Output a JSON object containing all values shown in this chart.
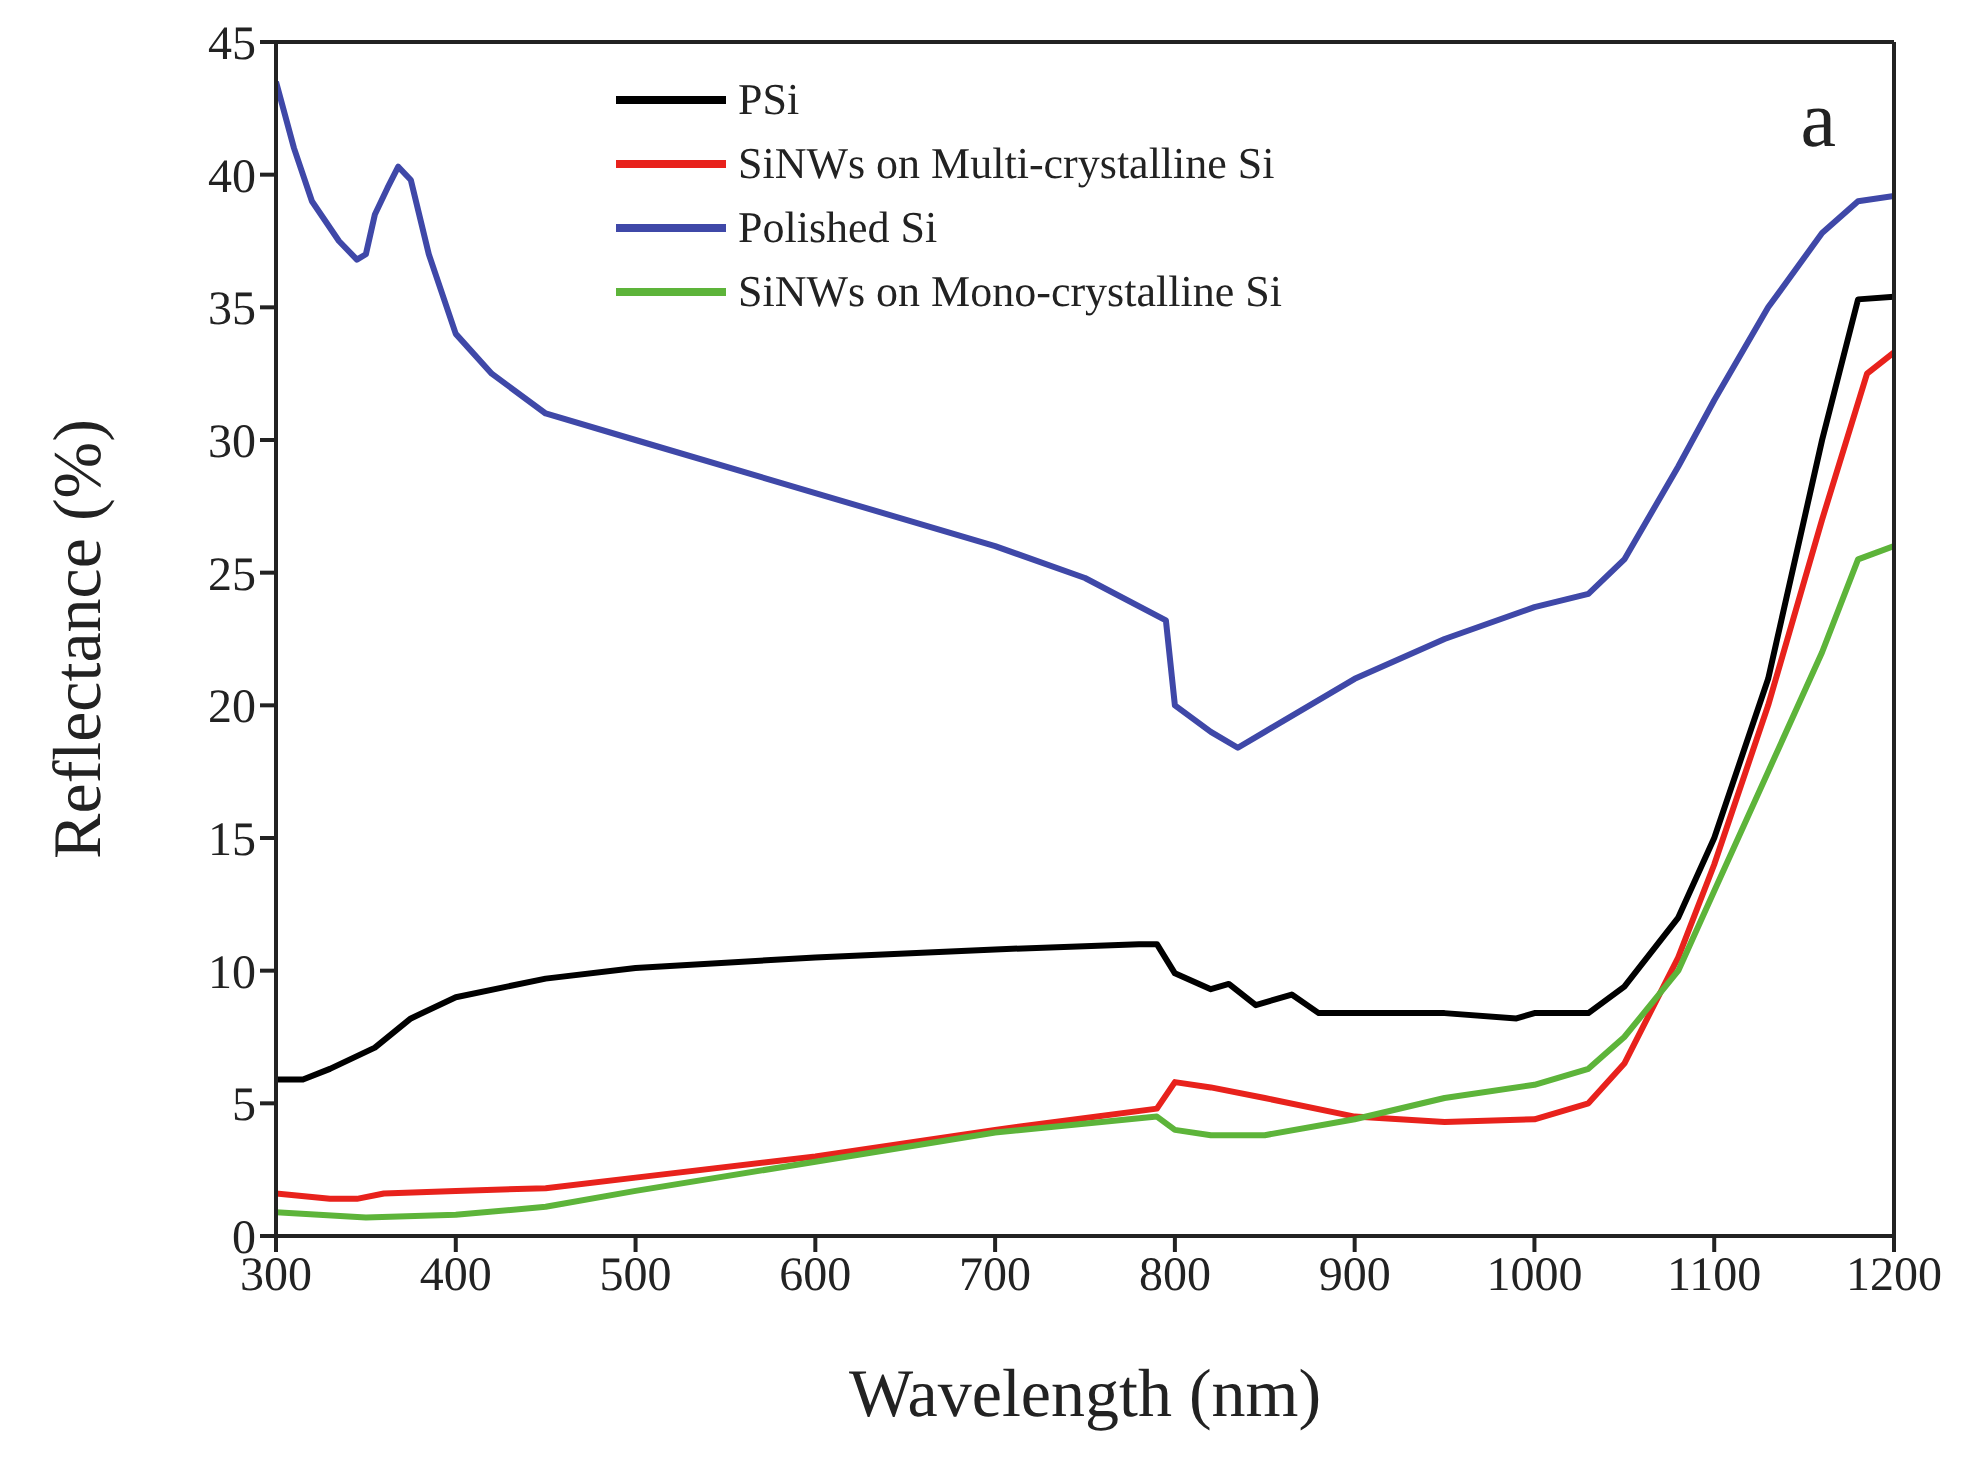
{
  "chart_data": {
    "type": "line",
    "xlabel": "Wavelength (nm)",
    "ylabel": "Reflectance (%)",
    "xlim": [
      300,
      1200
    ],
    "ylim": [
      0,
      45
    ],
    "xticks": [
      300,
      400,
      500,
      600,
      700,
      800,
      900,
      1000,
      1100,
      1200
    ],
    "yticks": [
      0,
      5,
      10,
      15,
      20,
      25,
      30,
      35,
      40,
      45
    ],
    "grid": false,
    "legend": "top",
    "marker": "none",
    "line_style": "solid",
    "annotations": [
      "a"
    ],
    "series": [
      {
        "name": "PSi",
        "color": "#000000",
        "x": [
          300,
          315,
          330,
          355,
          375,
          400,
          450,
          500,
          600,
          700,
          780,
          790,
          800,
          820,
          830,
          845,
          865,
          880,
          900,
          950,
          990,
          1000,
          1030,
          1050,
          1080,
          1100,
          1130,
          1160,
          1180,
          1200
        ],
        "values": [
          5.9,
          5.9,
          6.3,
          7.1,
          8.2,
          9.0,
          9.7,
          10.1,
          10.5,
          10.8,
          11.0,
          11.0,
          9.9,
          9.3,
          9.5,
          8.7,
          9.1,
          8.4,
          8.4,
          8.4,
          8.2,
          8.4,
          8.4,
          9.4,
          12,
          15,
          21,
          30,
          35.3,
          35.4
        ]
      },
      {
        "name": "SiNWs on Multi-crystalline Si",
        "color": "#e8221c",
        "x": [
          300,
          330,
          345,
          360,
          400,
          450,
          500,
          600,
          700,
          790,
          800,
          820,
          850,
          900,
          950,
          1000,
          1030,
          1050,
          1080,
          1100,
          1130,
          1160,
          1185,
          1200
        ],
        "values": [
          1.6,
          1.4,
          1.4,
          1.6,
          1.7,
          1.8,
          2.2,
          3.0,
          4.0,
          4.8,
          5.8,
          5.6,
          5.2,
          4.5,
          4.3,
          4.4,
          5.0,
          6.5,
          10.5,
          14,
          20,
          27,
          32.5,
          33.3
        ]
      },
      {
        "name": "Polished Si",
        "color": "#3f48a8",
        "x": [
          300,
          310,
          320,
          335,
          345,
          350,
          355,
          362,
          368,
          375,
          385,
          400,
          420,
          450,
          500,
          600,
          700,
          750,
          795,
          800,
          820,
          835,
          850,
          900,
          950,
          1000,
          1030,
          1050,
          1080,
          1100,
          1130,
          1160,
          1180,
          1200
        ],
        "values": [
          43.5,
          41,
          39,
          37.5,
          36.8,
          37,
          38.5,
          39.5,
          40.3,
          39.8,
          37,
          34,
          32.5,
          31,
          30,
          28,
          26,
          24.8,
          23.2,
          20,
          19,
          18.4,
          19,
          21,
          22.5,
          23.7,
          24.2,
          25.5,
          29,
          31.5,
          35,
          37.8,
          39,
          39.2
        ]
      },
      {
        "name": "SiNWs on Mono-crystalline Si",
        "color": "#5db43a",
        "x": [
          300,
          350,
          400,
          450,
          500,
          600,
          700,
          790,
          800,
          820,
          850,
          900,
          950,
          1000,
          1030,
          1050,
          1080,
          1100,
          1130,
          1160,
          1180,
          1200
        ],
        "values": [
          0.9,
          0.7,
          0.8,
          1.1,
          1.7,
          2.8,
          3.9,
          4.5,
          4.0,
          3.8,
          3.8,
          4.4,
          5.2,
          5.7,
          6.3,
          7.5,
          10,
          13,
          17.5,
          22,
          25.5,
          26
        ]
      }
    ]
  }
}
